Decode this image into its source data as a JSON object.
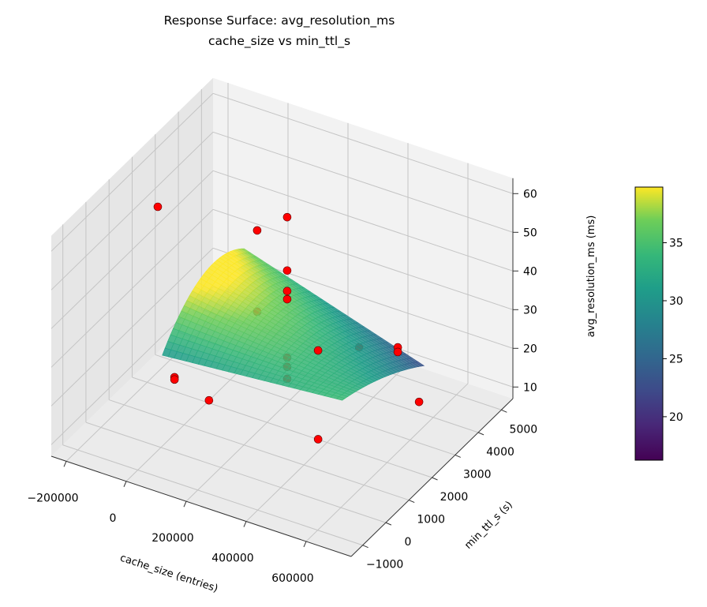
{
  "chart_data": {
    "type": "scatter",
    "subtype": "3d-surface-with-scatter",
    "title": "Response Surface: avg_resolution_ms",
    "subtitle": "cache_size vs min_ttl_s",
    "xlabel": "cache_size (entries)",
    "ylabel": "min_ttl_s (s)",
    "zlabel": "avg_resolution_ms (ms)",
    "xlim": [
      -250000,
      750000
    ],
    "ylim": [
      -1500,
      5500
    ],
    "zlim": [
      7,
      64
    ],
    "x_ticks": [
      -200000,
      0,
      200000,
      400000,
      600000
    ],
    "x_tick_labels": [
      "−200000",
      "0",
      "200000",
      "400000",
      "600000"
    ],
    "y_ticks": [
      -1000,
      0,
      1000,
      2000,
      3000,
      4000,
      5000
    ],
    "y_tick_labels": [
      "−1000",
      "0",
      "1000",
      "2000",
      "3000",
      "4000",
      "5000"
    ],
    "z_ticks": [
      10,
      20,
      30,
      40,
      50,
      60
    ],
    "z_tick_labels": [
      "10",
      "20",
      "30",
      "40",
      "50",
      "60"
    ],
    "grid": true,
    "surface": {
      "x_range": [
        0,
        600000
      ],
      "y_range": [
        60,
        3600
      ],
      "colormap": "viridis",
      "model": "z = 30.5 + 3.9X + 6.9Y - 18.6XY + 28Y(1-Y)(1-0.8X), X=x/600000, Y=(y-60)/3540"
    },
    "points": [
      {
        "x": -164500,
        "y": 2000,
        "z": 53.3
      },
      {
        "x": 267000,
        "y": 2000,
        "z": 61.8
      },
      {
        "x": 113000,
        "y": 2700,
        "z": 50.3
      },
      {
        "x": 267000,
        "y": 2000,
        "z": 48.0
      },
      {
        "x": 267000,
        "y": 2000,
        "z": 42.7
      },
      {
        "x": 267000,
        "y": 2000,
        "z": 40.6
      },
      {
        "x": 113000,
        "y": 2700,
        "z": 29.3
      },
      {
        "x": 424000,
        "y": 1300,
        "z": 35.5
      },
      {
        "x": 399000,
        "y": 3400,
        "z": 23.4
      },
      {
        "x": 501000,
        "y": 3750,
        "z": 24.0
      },
      {
        "x": 501000,
        "y": 3750,
        "z": 22.8
      },
      {
        "x": 267000,
        "y": 2000,
        "z": 25.5
      },
      {
        "x": 267000,
        "y": 2000,
        "z": 23.1
      },
      {
        "x": 267000,
        "y": 2000,
        "z": 20.0
      },
      {
        "x": 107000,
        "y": -800,
        "z": 32.6
      },
      {
        "x": 107000,
        "y": -800,
        "z": 32.0
      },
      {
        "x": 222000,
        "y": -800,
        "z": 29.6
      },
      {
        "x": 545000,
        "y": 4100,
        "z": 9.0
      },
      {
        "x": 532000,
        "y": -100,
        "z": 23.5
      }
    ],
    "point_color": "#ff0000",
    "colorbar": {
      "range": [
        16.25,
        39.8
      ],
      "ticks": [
        20,
        25,
        30,
        35
      ],
      "tick_labels": [
        "20",
        "25",
        "30",
        "35"
      ]
    }
  }
}
